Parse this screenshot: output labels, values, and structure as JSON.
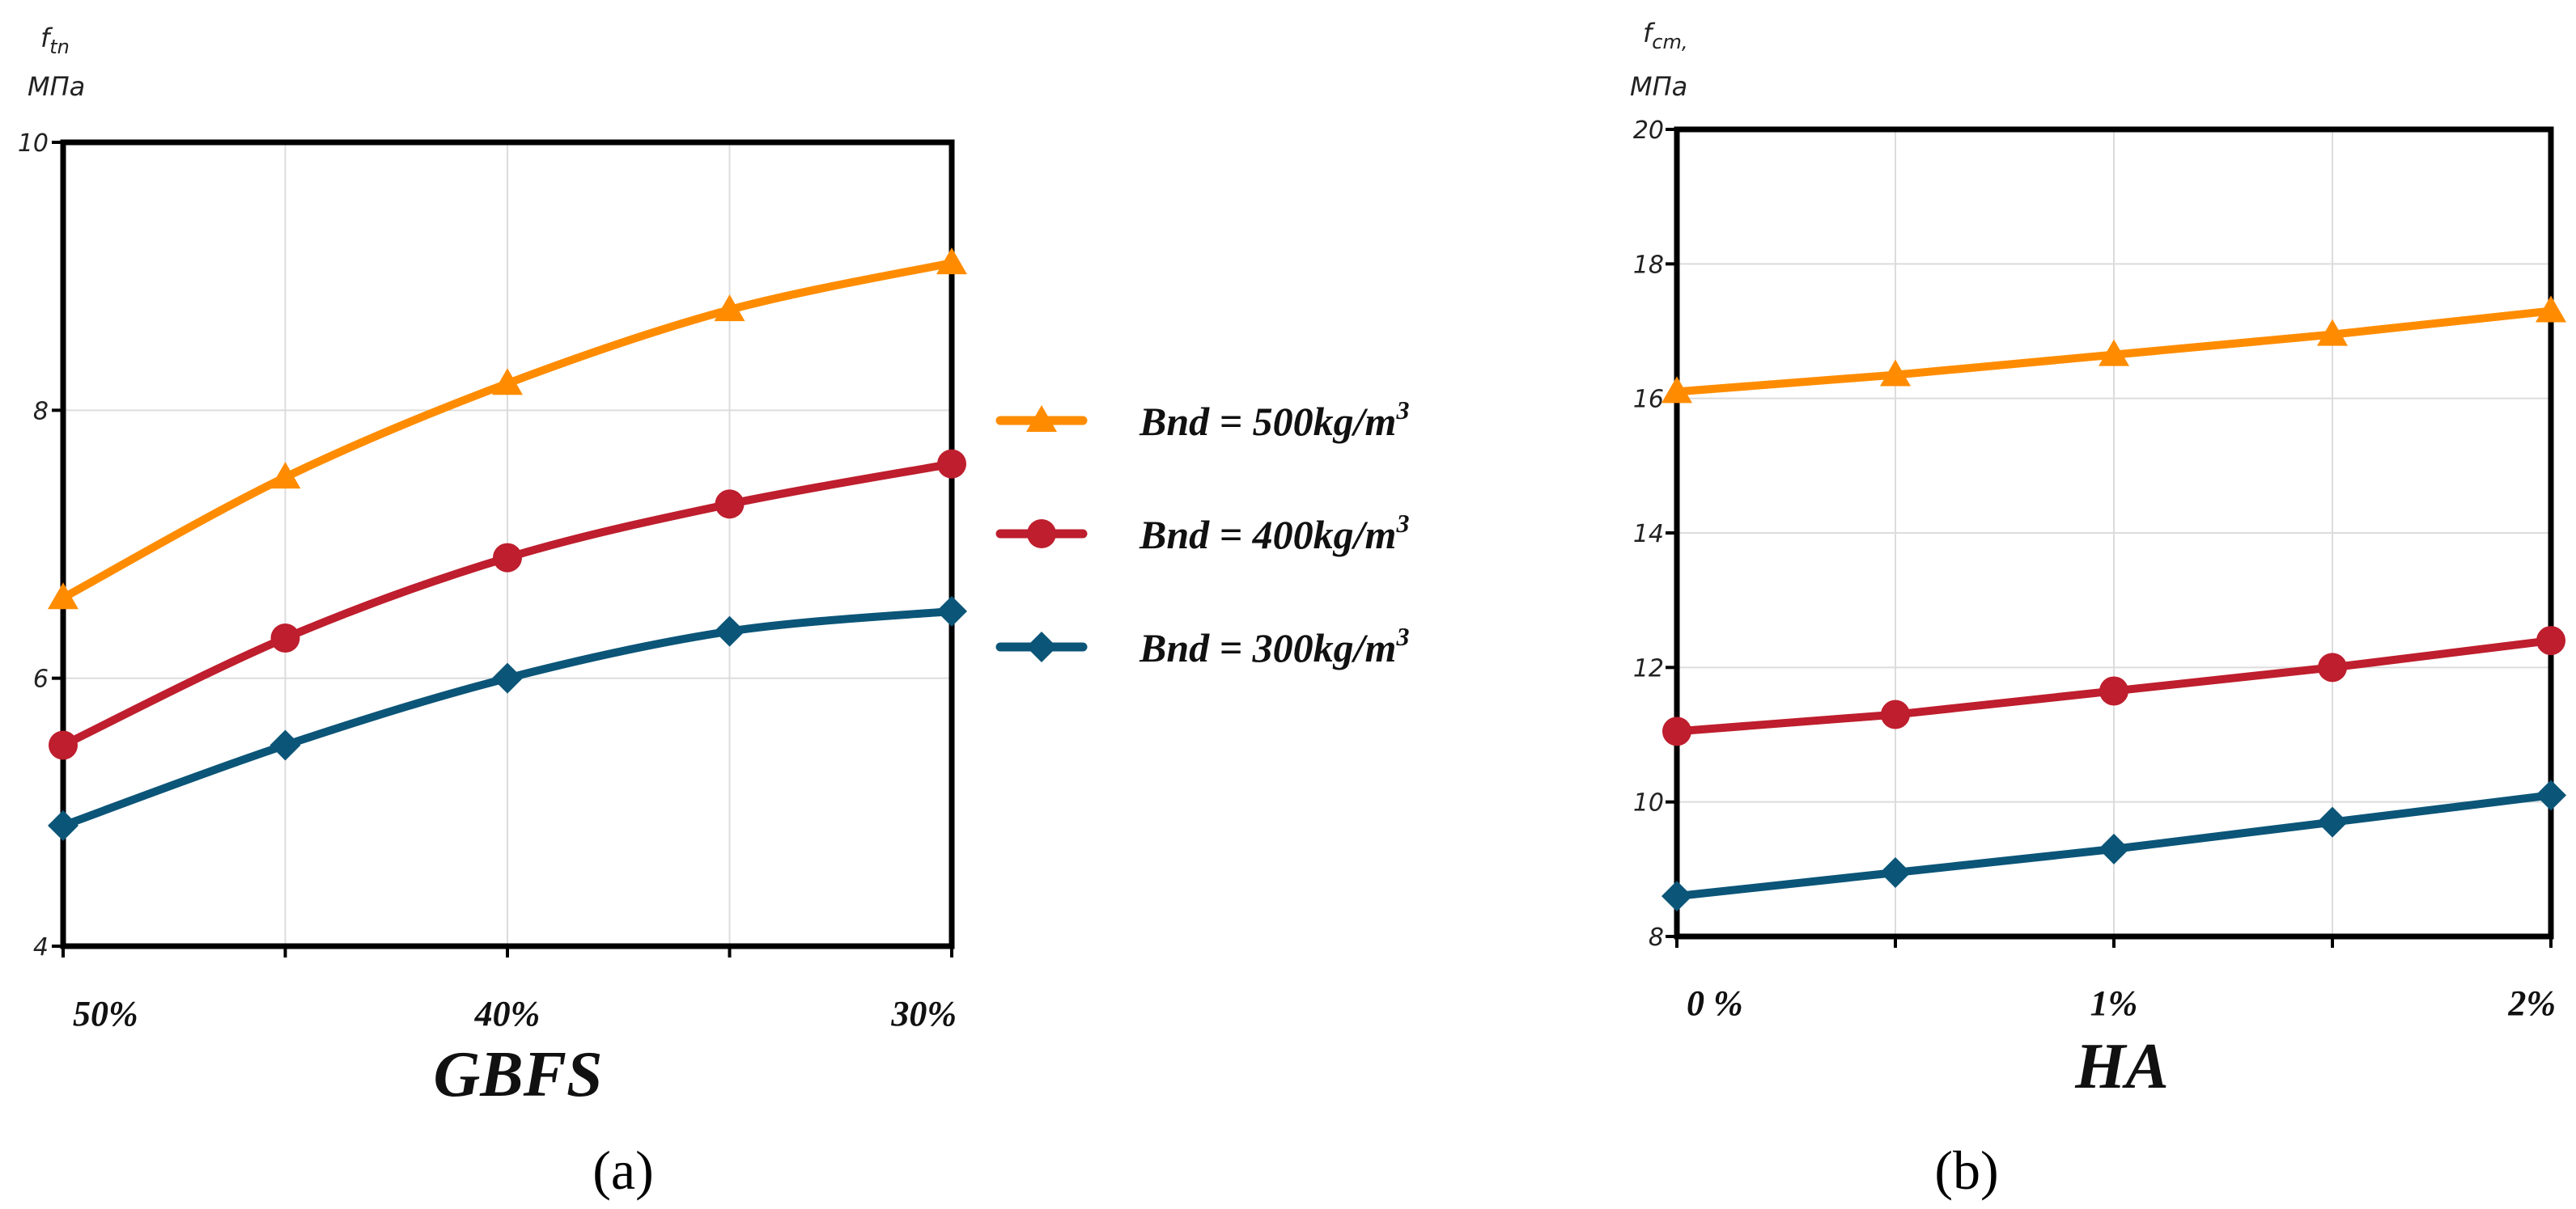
{
  "chart_data": [
    {
      "type": "line",
      "panel_label": "(a)",
      "ylabel_symbol": "f",
      "ylabel_sub": "tn",
      "ylabel_unit": "МПа",
      "xlabel": "GBFS",
      "x": [
        0,
        1,
        2,
        3,
        4
      ],
      "xtick_labels": [
        "50%",
        "",
        "40%",
        "",
        "30%"
      ],
      "ylim": [
        4,
        10
      ],
      "yticks": [
        4,
        6,
        8,
        10
      ],
      "grid": true,
      "series": [
        {
          "name": "Bnd = 500kg/m³",
          "color": "#FF8C00",
          "marker": "triangle",
          "values": [
            6.6,
            7.5,
            8.2,
            8.75,
            9.1
          ]
        },
        {
          "name": "Bnd = 400kg/m³",
          "color": "#BE1E2D",
          "marker": "circle",
          "values": [
            5.5,
            6.3,
            6.9,
            7.3,
            7.6
          ]
        },
        {
          "name": "Bnd = 300kg/m³",
          "color": "#0B5578",
          "marker": "diamond",
          "values": [
            4.9,
            5.5,
            6.0,
            6.35,
            6.5
          ]
        }
      ]
    },
    {
      "type": "line",
      "panel_label": "(b)",
      "ylabel_symbol": "f",
      "ylabel_sub": "cm,",
      "ylabel_unit": "МПа",
      "xlabel": "HA",
      "x": [
        0,
        1,
        2,
        3,
        4
      ],
      "xtick_labels": [
        "0 %",
        "",
        "1%",
        "",
        "2%"
      ],
      "ylim": [
        8,
        20
      ],
      "yticks": [
        8,
        10,
        12,
        14,
        16,
        18,
        20
      ],
      "grid": true,
      "series": [
        {
          "name": "Bnd = 500kg/m³",
          "color": "#FF8C00",
          "marker": "triangle",
          "values": [
            16.1,
            16.35,
            16.65,
            16.95,
            17.3
          ]
        },
        {
          "name": "Bnd = 400kg/m³",
          "color": "#BE1E2D",
          "marker": "circle",
          "values": [
            11.05,
            11.3,
            11.65,
            12.0,
            12.4
          ]
        },
        {
          "name": "Bnd = 300kg/m³",
          "color": "#0B5578",
          "marker": "diamond",
          "values": [
            8.6,
            8.95,
            9.3,
            9.7,
            10.1
          ]
        }
      ]
    }
  ],
  "legend": {
    "placement": "between-panels",
    "entries": [
      {
        "prefix": "Bnd = 500kg/m",
        "sup": "3",
        "color": "#FF8C00",
        "marker": "triangle"
      },
      {
        "prefix": "Bnd = 400kg/m",
        "sup": "3",
        "color": "#BE1E2D",
        "marker": "circle"
      },
      {
        "prefix": "Bnd = 300kg/m",
        "sup": "3",
        "color": "#0B5578",
        "marker": "diamond"
      }
    ]
  }
}
